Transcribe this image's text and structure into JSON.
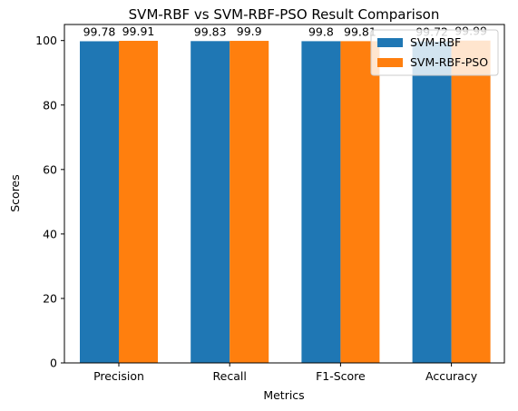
{
  "chart_data": {
    "type": "bar",
    "title": "SVM-RBF vs SVM-RBF-PSO Result Comparison",
    "xlabel": "Metrics",
    "ylabel": "Scores",
    "categories": [
      "Precision",
      "Recall",
      "F1-Score",
      "Accuracy"
    ],
    "series": [
      {
        "name": "SVM-RBF",
        "values": [
          99.78,
          99.83,
          99.8,
          99.72
        ],
        "labels": [
          "99.78",
          "99.83",
          "99.8",
          "99.72"
        ],
        "color": "#1f77b4"
      },
      {
        "name": "SVM-RBF-PSO",
        "values": [
          99.91,
          99.9,
          99.81,
          99.99
        ],
        "labels": [
          "99.91",
          "99.9",
          "99.81",
          "99.99"
        ],
        "color": "#ff7f0e"
      }
    ],
    "ylim": [
      0,
      104.98
    ],
    "yticks": [
      0,
      20,
      40,
      60,
      80,
      100
    ],
    "legend": "top-right",
    "grid": false
  }
}
